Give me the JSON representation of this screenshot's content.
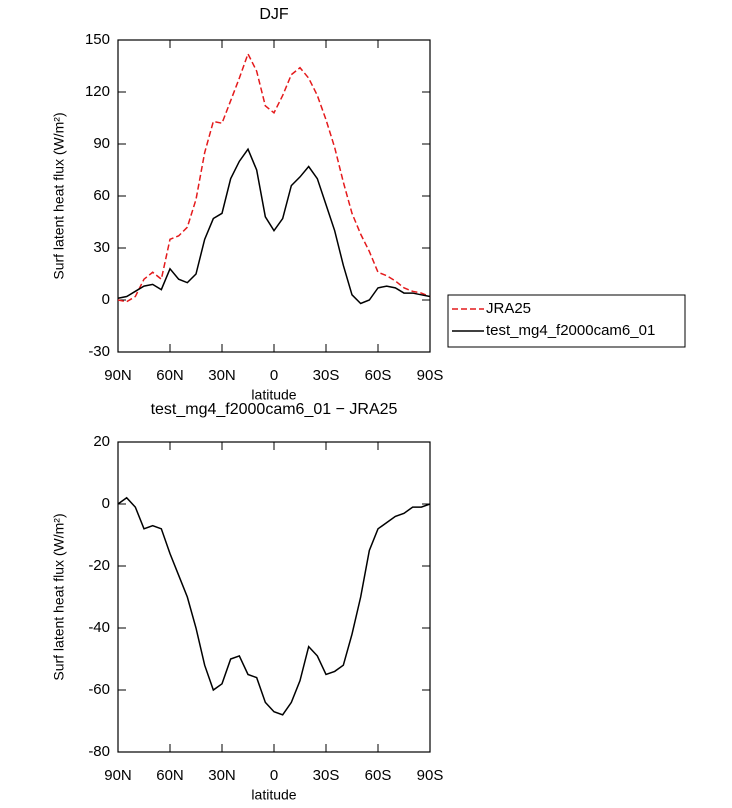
{
  "chart_data": [
    {
      "type": "line",
      "title": "DJF",
      "xlabel": "latitude",
      "ylabel": "Surf latent heat flux (W/m²)",
      "x": [
        90,
        85,
        80,
        75,
        70,
        65,
        60,
        55,
        50,
        45,
        40,
        35,
        30,
        25,
        20,
        15,
        10,
        5,
        0,
        -5,
        -10,
        -15,
        -20,
        -25,
        -30,
        -35,
        -40,
        -45,
        -50,
        -55,
        -60,
        -65,
        -70,
        -75,
        -80,
        -85,
        -90
      ],
      "series": [
        {
          "name": "JRA25",
          "color": "#e41a1c",
          "line_style": "dashed",
          "values": [
            0,
            -1,
            2,
            12,
            16,
            12,
            35,
            37,
            42,
            58,
            85,
            103,
            102,
            115,
            128,
            142,
            132,
            112,
            108,
            118,
            130,
            134,
            128,
            118,
            104,
            88,
            68,
            50,
            38,
            28,
            16,
            14,
            11,
            7,
            5,
            4,
            2
          ]
        },
        {
          "name": "test_mg4_f2000cam6_01",
          "color": "#000000",
          "line_style": "solid",
          "values": [
            1,
            2,
            5,
            8,
            9,
            6,
            18,
            12,
            10,
            15,
            35,
            47,
            50,
            70,
            80,
            87,
            75,
            48,
            40,
            47,
            66,
            71,
            77,
            70,
            55,
            40,
            20,
            3,
            -2,
            0,
            7,
            8,
            7,
            4,
            4,
            3,
            2
          ]
        }
      ],
      "xlim": [
        90,
        -90
      ],
      "xticks": [
        {
          "value": 90,
          "label": "90N"
        },
        {
          "value": 60,
          "label": "60N"
        },
        {
          "value": 30,
          "label": "30N"
        },
        0,
        {
          "value": -30,
          "label": "30S"
        },
        {
          "value": -60,
          "label": "60S"
        },
        {
          "value": -90,
          "label": "90S"
        }
      ],
      "ylim": [
        -30,
        150
      ],
      "yticks": [
        -30,
        0,
        30,
        60,
        90,
        120,
        150
      ],
      "legend": "outside-right"
    },
    {
      "type": "line",
      "title": "test_mg4_f2000cam6_01 − JRA25",
      "xlabel": "latitude",
      "ylabel": "Surf latent heat flux (W/m²)",
      "x": [
        90,
        85,
        80,
        75,
        70,
        65,
        60,
        55,
        50,
        45,
        40,
        35,
        30,
        25,
        20,
        15,
        10,
        5,
        0,
        -5,
        -10,
        -15,
        -20,
        -25,
        -30,
        -35,
        -40,
        -45,
        -50,
        -55,
        -60,
        -65,
        -70,
        -75,
        -80,
        -85,
        -90
      ],
      "series": [
        {
          "color": "#000000",
          "line_style": "solid",
          "values": [
            0,
            2,
            -1,
            -8,
            -7,
            -8,
            -16,
            -23,
            -30,
            -40,
            -52,
            -60,
            -58,
            -50,
            -49,
            -55,
            -56,
            -64,
            -67,
            -68,
            -64,
            -57,
            -46,
            -49,
            -55,
            -54,
            -52,
            -42,
            -30,
            -15,
            -8,
            -6,
            -4,
            -3,
            -1,
            -1,
            0
          ]
        }
      ],
      "xlim": [
        90,
        -90
      ],
      "xticks": [
        {
          "value": 90,
          "label": "90N"
        },
        {
          "value": 60,
          "label": "60N"
        },
        {
          "value": 30,
          "label": "30N"
        },
        0,
        {
          "value": -30,
          "label": "30S"
        },
        {
          "value": -60,
          "label": "60S"
        },
        {
          "value": -90,
          "label": "90S"
        }
      ],
      "ylim": [
        -80,
        20
      ],
      "yticks": [
        -80,
        -60,
        -40,
        -20,
        0,
        20
      ]
    }
  ]
}
